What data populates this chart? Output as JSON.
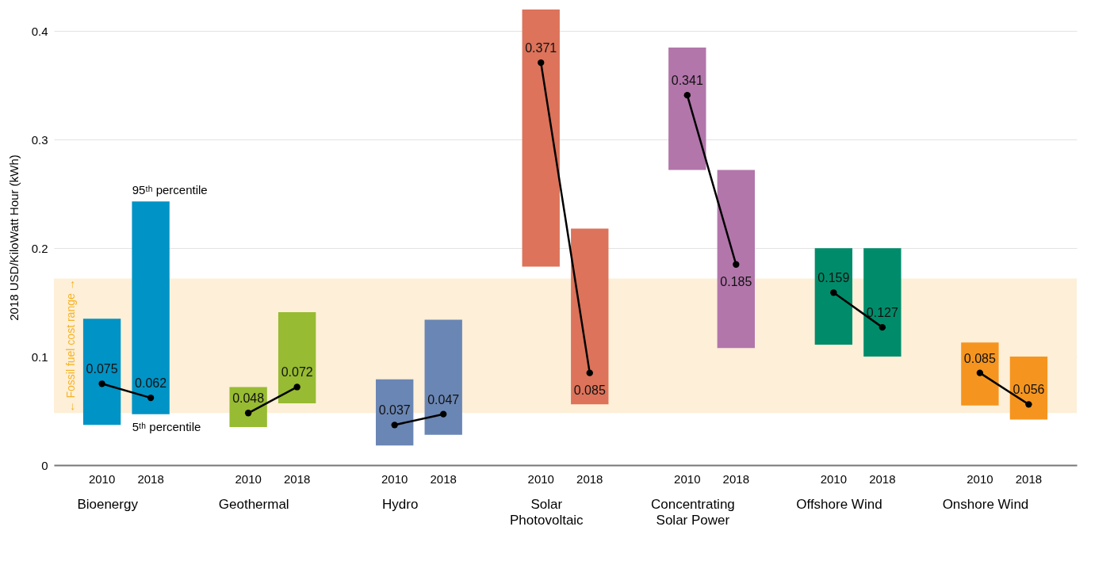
{
  "chart_data": {
    "type": "bar",
    "ylabel": "2018 USD/KiloWatt Hour (kWh)",
    "categories": [
      "2010",
      "2018",
      null,
      "2010",
      "2018",
      null,
      "2010",
      "2018",
      null,
      "2010",
      "2018",
      null,
      "2010",
      "2018",
      null,
      "2010",
      "2018",
      null,
      "2010",
      "2018"
    ],
    "series": [
      {
        "base": [
          0.037,
          0.047,
          null,
          0.035,
          0.057,
          null,
          0.018,
          0.028,
          null,
          0.183,
          0.056,
          null,
          0.272,
          0.108,
          null,
          0.111,
          0.1,
          null,
          0.055,
          0.042
        ],
        "values": [
          0.098,
          0.196,
          null,
          0.037,
          0.084,
          null,
          0.061,
          0.106,
          null,
          0.237,
          0.162,
          null,
          0.113,
          0.164,
          null,
          0.089,
          0.1,
          null,
          0.058,
          0.058
        ],
        "colors": [
          "#0093c5",
          "#0093c5",
          null,
          "#97bb32",
          "#97bb32",
          null,
          "#6a86b4",
          "#6a86b4",
          null,
          "#dc735a",
          "#dc735a",
          null,
          "#b276ab",
          "#b276ab",
          null,
          "#008c6a",
          "#008c6a",
          null,
          "#f5951f",
          "#f5951f"
        ]
      },
      {
        "type": "line",
        "color": "#000000",
        "values": [
          0.075,
          0.062,
          null,
          null,
          null,
          null,
          null,
          null,
          null,
          null,
          null,
          null,
          null,
          null,
          null,
          null,
          null,
          null,
          null,
          null
        ],
        "value_labels": [
          "0.075",
          "0.062",
          null,
          null,
          null,
          null,
          null,
          null,
          null,
          null,
          null,
          null,
          null,
          null,
          null,
          null,
          null,
          null,
          null,
          null
        ]
      },
      {
        "type": "line",
        "color": "#000000",
        "values": [
          null,
          null,
          null,
          0.048,
          0.072,
          null,
          null,
          null,
          null,
          null,
          null,
          null,
          null,
          null,
          null,
          null,
          null,
          null,
          null,
          null
        ],
        "value_labels": [
          null,
          null,
          null,
          "0.048",
          "0.072",
          null,
          null,
          null,
          null,
          null,
          null,
          null,
          null,
          null,
          null,
          null,
          null,
          null,
          null,
          null
        ]
      },
      {
        "type": "line",
        "color": "#000000",
        "values": [
          null,
          null,
          null,
          null,
          null,
          null,
          0.037,
          0.047,
          null,
          null,
          null,
          null,
          null,
          null,
          null,
          null,
          null,
          null,
          null,
          null
        ],
        "value_labels": [
          null,
          null,
          null,
          null,
          null,
          null,
          "0.037",
          "0.047",
          null,
          null,
          null,
          null,
          null,
          null,
          null,
          null,
          null,
          null,
          null,
          null
        ]
      },
      {
        "type": "line",
        "color": "#000000",
        "values": [
          null,
          null,
          null,
          null,
          null,
          null,
          null,
          null,
          null,
          0.371,
          0.085,
          null,
          null,
          null,
          null,
          null,
          null,
          null,
          null,
          null
        ],
        "value_labels": [
          null,
          null,
          null,
          null,
          null,
          null,
          null,
          null,
          null,
          "0.371",
          "0.085",
          null,
          null,
          null,
          null,
          null,
          null,
          null,
          null,
          null
        ]
      },
      {
        "type": "line",
        "color": "#000000",
        "values": [
          null,
          null,
          null,
          null,
          null,
          null,
          null,
          null,
          null,
          null,
          null,
          null,
          0.341,
          0.185,
          null,
          null,
          null,
          null,
          null,
          null
        ],
        "value_labels": [
          null,
          null,
          null,
          null,
          null,
          null,
          null,
          null,
          null,
          null,
          null,
          null,
          "0.341",
          "0.185",
          null,
          null,
          null,
          null,
          null,
          null
        ]
      },
      {
        "type": "line",
        "color": "#000000",
        "values": [
          null,
          null,
          null,
          null,
          null,
          null,
          null,
          null,
          null,
          null,
          null,
          null,
          null,
          null,
          null,
          0.159,
          0.127,
          null,
          null,
          null
        ],
        "value_labels": [
          null,
          null,
          null,
          null,
          null,
          null,
          null,
          null,
          null,
          null,
          null,
          null,
          null,
          null,
          null,
          "0.159",
          "0.127",
          null,
          null,
          null
        ]
      },
      {
        "type": "line",
        "color": "#000000",
        "values": [
          null,
          null,
          null,
          null,
          null,
          null,
          null,
          null,
          null,
          null,
          null,
          null,
          null,
          null,
          null,
          null,
          null,
          null,
          0.085,
          0.056
        ],
        "value_labels": [
          null,
          null,
          null,
          null,
          null,
          null,
          null,
          null,
          null,
          null,
          null,
          null,
          null,
          null,
          null,
          null,
          null,
          null,
          "0.085",
          "0.056"
        ]
      }
    ],
    "marker": "circle",
    "line_style": "solid",
    "ylim": [
      0,
      0.42
    ],
    "yticks": [
      0,
      0.1,
      0.2,
      0.3,
      0.4
    ],
    "grid": "y",
    "bands": [
      {
        "axis": "y",
        "from": 0.048,
        "to": 0.172,
        "label": "← Fossil fuel cost range →",
        "color": "#fdefd8"
      }
    ],
    "annotations": [
      "Bioenergy",
      "Geothermal",
      "Hydro",
      "Solar Photovoltaic",
      "Concentrating Solar Power",
      "Offshore Wind",
      "Onshore Wind",
      {
        "text": "95ᵗʰ percentile",
        "x": "2018",
        "y": 0.243
      },
      {
        "text": "5ᵗʰ percentile",
        "x": "2018",
        "y": 0.047
      }
    ]
  }
}
